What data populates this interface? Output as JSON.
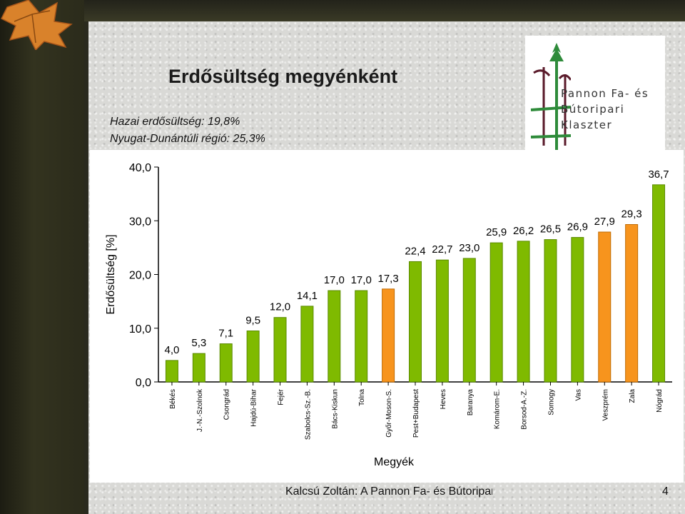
{
  "slide": {
    "title": "Erdősültség megyénként",
    "subtitle1": "Hazai erdősültség: 19,8%",
    "subtitle2": "Nyugat-Dunántúli régió: 25,3%",
    "footer": "Kalcsú Zoltán: A Pannon Fa- és Bútoripari Klaszter",
    "page_number": "4"
  },
  "logo": {
    "lines": [
      "Pannon Fa- és",
      "Bútoripari",
      "Klaszter"
    ]
  },
  "colors": {
    "green": "#7fba00",
    "orange": "#f7941d",
    "green_stroke": "#5a8a00",
    "orange_stroke": "#c06a00",
    "logo_green": "#2e8b3a",
    "logo_maroon": "#5a1a2a"
  },
  "chart_data": {
    "type": "bar",
    "xlabel": "Megyék",
    "ylabel": "Erdősültség [%]",
    "ylim": [
      0,
      40
    ],
    "yticks": [
      "0,0",
      "10,0",
      "20,0",
      "30,0",
      "40,0"
    ],
    "grid": false,
    "categories": [
      "Békés",
      "J.-N.-Szolnok",
      "Csongrád",
      "Hajdú-Bihar",
      "Fejér",
      "Szabolcs-Sz.-B.",
      "Bács-Kiskun",
      "Tolna",
      "Győr-Moson-S.",
      "Pest+Budapest",
      "Heves",
      "Baranya",
      "Komárom-E.",
      "Borsod-A.-Z.",
      "Somogy",
      "Vas",
      "Veszprém",
      "Zala",
      "Nógrád"
    ],
    "values": [
      4.0,
      5.3,
      7.1,
      9.5,
      12.0,
      14.1,
      17.0,
      17.0,
      17.3,
      22.4,
      22.7,
      23.0,
      25.9,
      26.2,
      26.5,
      26.9,
      27.9,
      29.3,
      36.7
    ],
    "value_labels": [
      "4,0",
      "5,3",
      "7,1",
      "9,5",
      "12,0",
      "14,1",
      "17,0",
      "17,0",
      "17,3",
      "22,4",
      "22,7",
      "23,0",
      "25,9",
      "26,2",
      "26,5",
      "26,9",
      "27,9",
      "29,3",
      "36,7"
    ],
    "highlight": [
      false,
      false,
      false,
      false,
      false,
      false,
      false,
      false,
      true,
      false,
      false,
      false,
      false,
      false,
      false,
      false,
      true,
      true,
      false
    ]
  }
}
